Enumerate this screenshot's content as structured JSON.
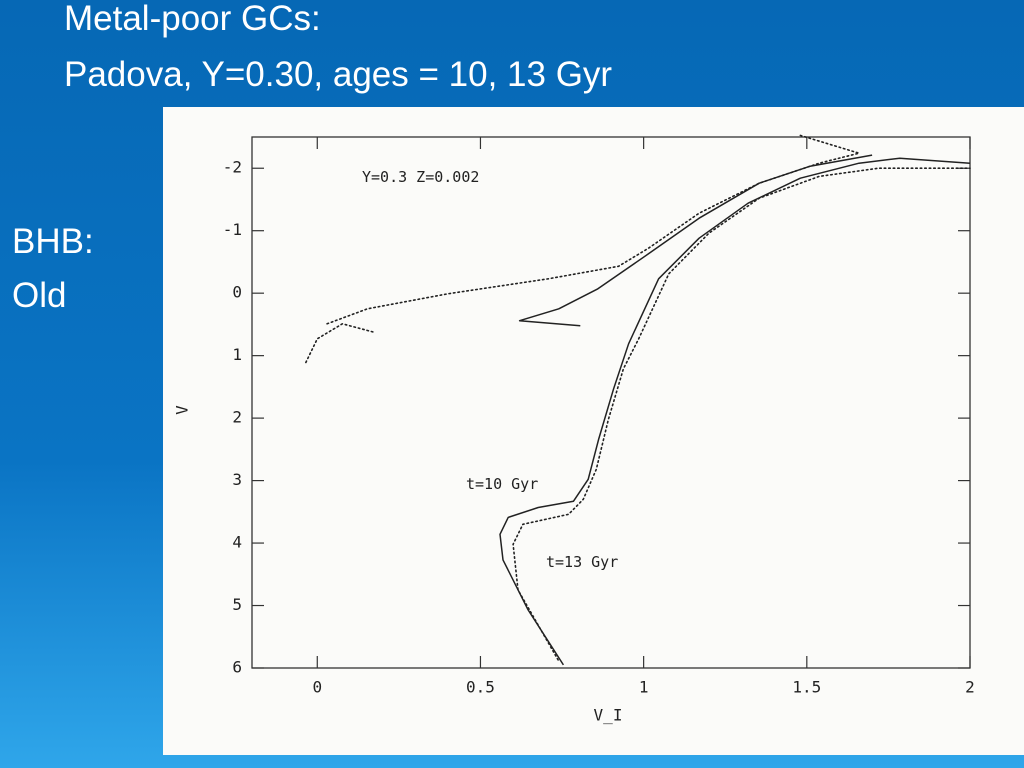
{
  "slide": {
    "title_lines": [
      "Metal-poor GCs:",
      "Padova, Y=0.30, ages = 10, 13 Gyr"
    ],
    "side_lines": [
      "BHB:",
      "Old"
    ]
  },
  "chart_data": {
    "type": "line",
    "xlabel": "V_I",
    "ylabel": "V",
    "annotations": [
      "Y=0.3 Z=0.002",
      "t=10 Gyr",
      "t=13 Gyr"
    ],
    "xlim": [
      -0.2,
      2
    ],
    "xticks": [
      0,
      0.5,
      1,
      1.5,
      2
    ],
    "ylim": [
      -2.5,
      6
    ],
    "yticks": [
      -2,
      -1,
      0,
      1,
      2,
      3,
      4,
      5,
      6
    ],
    "y_inverted": true,
    "series": [
      {
        "name": "t=10 Gyr",
        "color": "#222222",
        "dash": "solid",
        "x": [
          0.754,
          0.646,
          0.569,
          0.56,
          0.585,
          0.677,
          0.785,
          0.83,
          0.862,
          0.908,
          0.954,
          1.046,
          1.17,
          1.32,
          1.48,
          1.66,
          1.785,
          2.0,
          null,
          0.806,
          0.62,
          0.74,
          0.86,
          1.015,
          1.17,
          1.354,
          1.508,
          1.7
        ],
        "values": [
          5.95,
          5.07,
          4.27,
          3.86,
          3.59,
          3.43,
          3.33,
          2.98,
          2.34,
          1.53,
          0.81,
          -0.23,
          -0.88,
          -1.44,
          -1.84,
          -2.08,
          -2.16,
          -2.08,
          null,
          0.52,
          0.44,
          0.25,
          -0.07,
          -0.63,
          -1.2,
          -1.76,
          -2.03,
          -2.21
        ]
      },
      {
        "name": "t=13 Gyr",
        "color": "#222222",
        "dash": "dotted",
        "x": [
          0.738,
          0.615,
          0.6,
          0.63,
          0.77,
          0.815,
          0.855,
          0.892,
          0.938,
          0.985,
          1.077,
          1.2,
          1.354,
          1.538,
          1.72,
          2.0,
          null,
          0.17,
          0.077,
          0,
          -0.037,
          null,
          0.03,
          0.154,
          0.4,
          0.708,
          0.923,
          1.015,
          1.17,
          1.354,
          1.538,
          1.66,
          1.477
        ],
        "values": [
          5.87,
          4.75,
          4.02,
          3.7,
          3.54,
          3.3,
          2.82,
          2.02,
          1.21,
          0.73,
          -0.31,
          -0.96,
          -1.52,
          -1.87,
          -2.0,
          -2.0,
          null,
          0.62,
          0.49,
          0.73,
          1.13,
          null,
          0.49,
          0.25,
          0.01,
          -0.23,
          -0.43,
          -0.72,
          -1.28,
          -1.76,
          -2.08,
          -2.24,
          -2.53
        ]
      }
    ]
  }
}
